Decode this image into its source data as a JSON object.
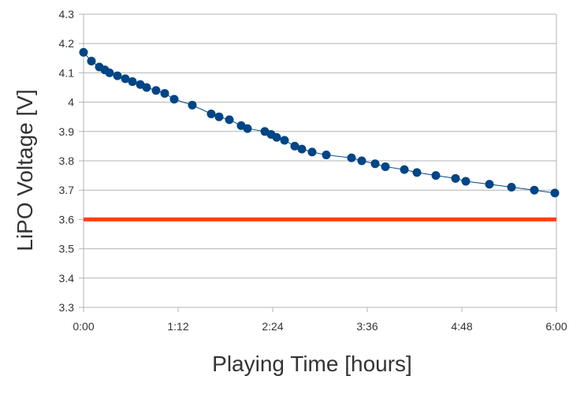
{
  "chart_data": {
    "type": "line",
    "title": "",
    "xlabel": "Playing Time [hours]",
    "ylabel": "LiPO Voltage [V]",
    "xlim": [
      0,
      6
    ],
    "ylim": [
      3.3,
      4.3
    ],
    "x_ticks": [
      0,
      1.2,
      2.4,
      3.6,
      4.8,
      6
    ],
    "x_tick_labels": [
      "0:00",
      "1:12",
      "2:24",
      "3:36",
      "4:48",
      "6:00"
    ],
    "y_ticks": [
      3.3,
      3.4,
      3.5,
      3.6,
      3.7,
      3.8,
      3.9,
      4,
      4.1,
      4.2,
      4.3
    ],
    "y_tick_labels": [
      "3.3",
      "3.4",
      "3.5",
      "3.6",
      "3.7",
      "3.8",
      "3.9",
      "4",
      "4.1",
      "4.2",
      "4.3"
    ],
    "grid": "horizontal",
    "series": [
      {
        "color": "#004586",
        "x": [
          0,
          0.1,
          0.2,
          0.27,
          0.33,
          0.43,
          0.53,
          0.62,
          0.72,
          0.8,
          0.92,
          1.03,
          1.15,
          1.38,
          1.62,
          1.72,
          1.85,
          2,
          2.08,
          2.3,
          2.38,
          2.45,
          2.55,
          2.68,
          2.77,
          2.9,
          3.08,
          3.4,
          3.53,
          3.7,
          3.83,
          4.07,
          4.23,
          4.47,
          4.72,
          4.85,
          5.15,
          5.43,
          5.72,
          5.98
        ],
        "y": [
          4.17,
          4.14,
          4.12,
          4.11,
          4.1,
          4.09,
          4.08,
          4.07,
          4.06,
          4.05,
          4.04,
          4.03,
          4.01,
          3.99,
          3.96,
          3.95,
          3.94,
          3.92,
          3.91,
          3.9,
          3.89,
          3.88,
          3.87,
          3.85,
          3.84,
          3.83,
          3.82,
          3.81,
          3.8,
          3.79,
          3.78,
          3.77,
          3.76,
          3.75,
          3.74,
          3.73,
          3.72,
          3.71,
          3.7,
          3.69
        ]
      },
      {
        "color": "#ff420e",
        "x": [
          0,
          6
        ],
        "y": [
          3.6,
          3.6
        ]
      }
    ]
  }
}
